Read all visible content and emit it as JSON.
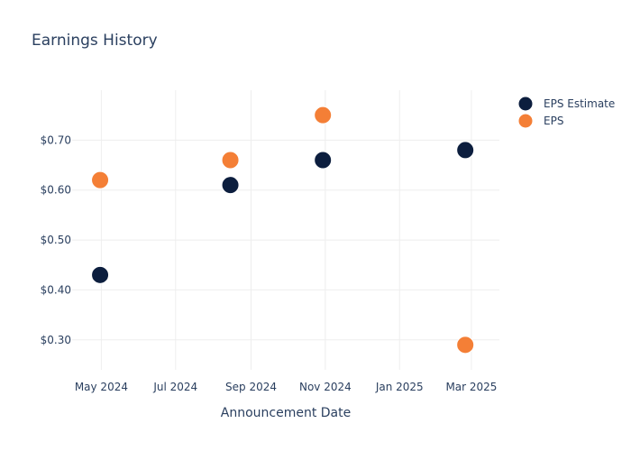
{
  "chart_data": {
    "type": "scatter",
    "title": "Earnings History",
    "xlabel": "Announcement Date",
    "ylabel": "",
    "x_ticks": [
      {
        "date": "2024-05-01",
        "label": "May 2024"
      },
      {
        "date": "2024-07-01",
        "label": "Jul 2024"
      },
      {
        "date": "2024-09-01",
        "label": "Sep 2024"
      },
      {
        "date": "2024-11-01",
        "label": "Nov 2024"
      },
      {
        "date": "2025-01-01",
        "label": "Jan 2025"
      },
      {
        "date": "2025-03-01",
        "label": "Mar 2025"
      }
    ],
    "y_ticks": [
      {
        "value": 0.3,
        "label": "$0.30"
      },
      {
        "value": 0.4,
        "label": "$0.40"
      },
      {
        "value": 0.5,
        "label": "$0.50"
      },
      {
        "value": 0.6,
        "label": "$0.60"
      },
      {
        "value": 0.7,
        "label": "$0.70"
      }
    ],
    "xlim": [
      "2024-04-07",
      "2025-03-24"
    ],
    "ylim": [
      0.24,
      0.8
    ],
    "grid": true,
    "legend_position": "top-right",
    "series": [
      {
        "name": "EPS Estimate",
        "color": "#0c1e3e",
        "points": [
          {
            "x": "2024-04-30",
            "y": 0.43
          },
          {
            "x": "2024-08-15",
            "y": 0.61
          },
          {
            "x": "2024-10-30",
            "y": 0.66
          },
          {
            "x": "2025-02-24",
            "y": 0.68
          }
        ]
      },
      {
        "name": "EPS",
        "color": "#f47f36",
        "points": [
          {
            "x": "2024-04-30",
            "y": 0.62
          },
          {
            "x": "2024-08-15",
            "y": 0.66
          },
          {
            "x": "2024-10-30",
            "y": 0.75
          },
          {
            "x": "2025-02-24",
            "y": 0.29
          }
        ]
      }
    ]
  }
}
